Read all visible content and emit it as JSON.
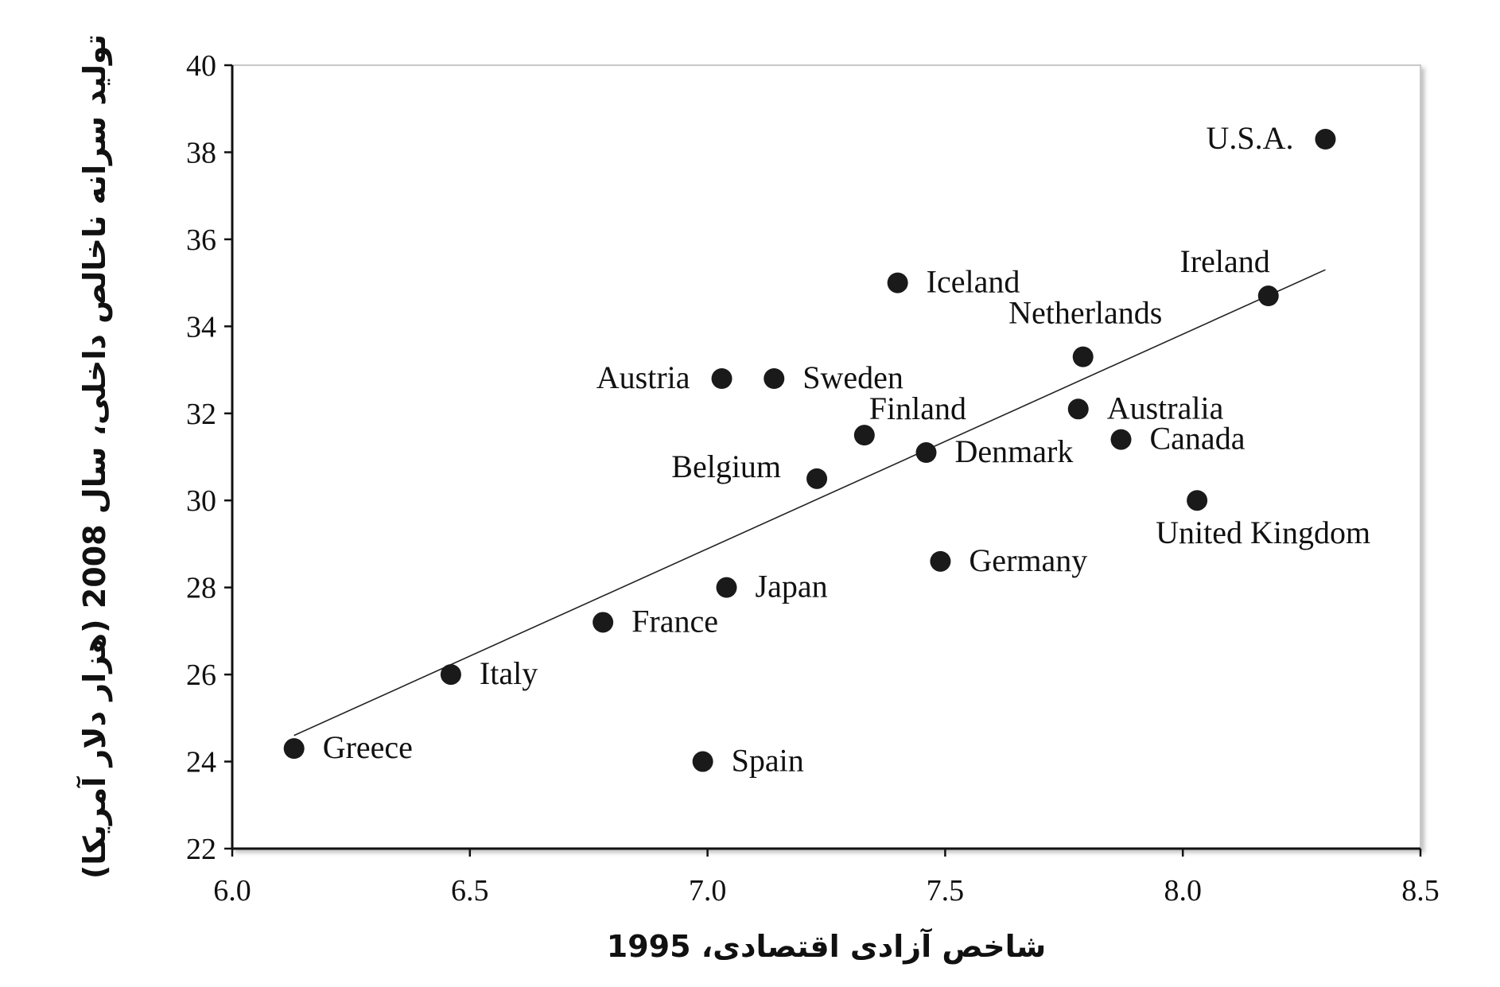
{
  "chart_data": {
    "type": "scatter",
    "title": "",
    "xlabel": "شاخص آزادی اقتصادی، 1995",
    "ylabel": "تولید سرانه ناخالص داخلی، سال 2008 (هزار دلار آمریکا)",
    "xlim": [
      6.0,
      8.5
    ],
    "ylim": [
      22,
      40
    ],
    "xticks": [
      "6.0",
      "6.5",
      "7.0",
      "7.5",
      "8.0",
      "8.5"
    ],
    "yticks": [
      "22",
      "24",
      "26",
      "28",
      "30",
      "32",
      "34",
      "36",
      "38",
      "40"
    ],
    "grid": false,
    "legend": "none",
    "marker_color": "#1a1a1a",
    "points": [
      {
        "label": "Greece",
        "x": 6.13,
        "y": 24.3,
        "pos": "right"
      },
      {
        "label": "Italy",
        "x": 6.46,
        "y": 26.0,
        "pos": "right"
      },
      {
        "label": "France",
        "x": 6.78,
        "y": 27.2,
        "pos": "right"
      },
      {
        "label": "Spain",
        "x": 6.99,
        "y": 24.0,
        "pos": "right"
      },
      {
        "label": "Austria",
        "x": 7.03,
        "y": 32.8,
        "pos": "left"
      },
      {
        "label": "Japan",
        "x": 7.04,
        "y": 28.0,
        "pos": "right"
      },
      {
        "label": "Sweden",
        "x": 7.14,
        "y": 32.8,
        "pos": "right"
      },
      {
        "label": "Belgium",
        "x": 7.23,
        "y": 30.5,
        "pos": "left-above"
      },
      {
        "label": "Finland",
        "x": 7.33,
        "y": 31.5,
        "pos": "above-right"
      },
      {
        "label": "Iceland",
        "x": 7.4,
        "y": 35.0,
        "pos": "right"
      },
      {
        "label": "Denmark",
        "x": 7.46,
        "y": 31.1,
        "pos": "right"
      },
      {
        "label": "Germany",
        "x": 7.49,
        "y": 28.6,
        "pos": "right"
      },
      {
        "label": "Australia",
        "x": 7.78,
        "y": 32.1,
        "pos": "right"
      },
      {
        "label": "Netherlands",
        "x": 7.79,
        "y": 33.3,
        "pos": "above"
      },
      {
        "label": "Canada",
        "x": 7.87,
        "y": 31.4,
        "pos": "right"
      },
      {
        "label": "United Kingdom",
        "x": 8.03,
        "y": 30.0,
        "pos": "below-right"
      },
      {
        "label": "Ireland",
        "x": 8.18,
        "y": 34.7,
        "pos": "above-left"
      },
      {
        "label": "U.S.A.",
        "x": 8.3,
        "y": 38.3,
        "pos": "left"
      }
    ],
    "trendline": {
      "x": [
        6.13,
        8.3
      ],
      "y": [
        24.6,
        35.3
      ]
    }
  }
}
